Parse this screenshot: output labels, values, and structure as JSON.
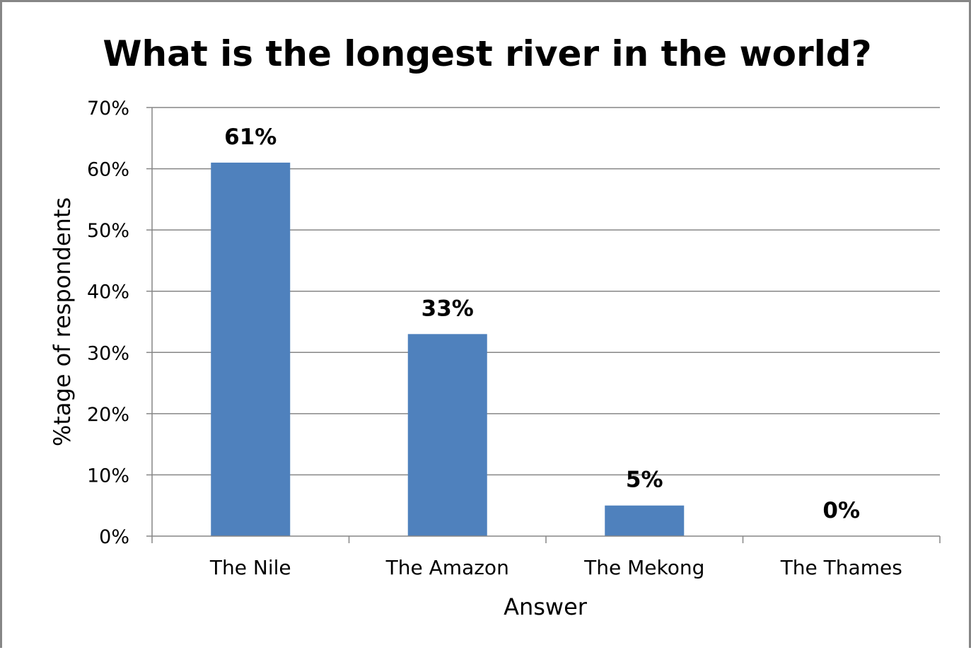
{
  "chart_data": {
    "type": "bar",
    "title": "What is the longest river in the world?",
    "xlabel": "Answer",
    "ylabel": "%tage of respondents",
    "categories": [
      "The Nile",
      "The Amazon",
      "The Mekong",
      "The Thames"
    ],
    "values": [
      61,
      33,
      5,
      0
    ],
    "data_labels": [
      "61%",
      "33%",
      "5%",
      "0%"
    ],
    "ylim": [
      0,
      70
    ],
    "yticks": [
      0,
      10,
      20,
      30,
      40,
      50,
      60,
      70
    ],
    "ytick_labels": [
      "0%",
      "10%",
      "20%",
      "30%",
      "40%",
      "50%",
      "60%",
      "70%"
    ],
    "grid": true,
    "legend": "none",
    "bar_color": "#4F81BD"
  }
}
